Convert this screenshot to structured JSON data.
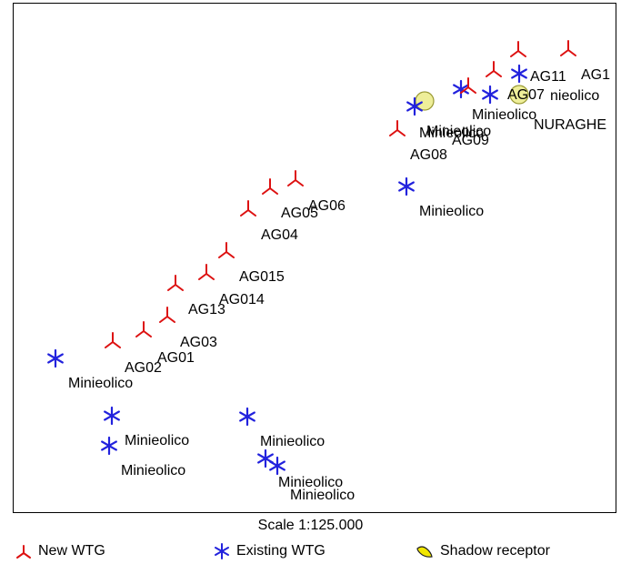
{
  "map": {
    "new_wtg": [
      {
        "label": "AG1"
      },
      {
        "label": "AG11"
      },
      {
        "label": "AG07"
      },
      {
        "label": "AG09"
      },
      {
        "label": "AG08"
      },
      {
        "label": "AG06"
      },
      {
        "label": "AG05"
      },
      {
        "label": "AG04"
      },
      {
        "label": "AG015"
      },
      {
        "label": "AG014"
      },
      {
        "label": "AG13"
      },
      {
        "label": "AG03"
      },
      {
        "label": "AG01"
      },
      {
        "label": "AG02"
      }
    ],
    "existing_wtg": [
      {
        "label": "nieolico"
      },
      {
        "label": "Minieolico"
      },
      {
        "label": "Minieolico"
      },
      {
        "label": "Minieolico"
      },
      {
        "label": "Minieolico"
      },
      {
        "label": "Minieolico"
      },
      {
        "label": "Minieolico"
      },
      {
        "label": "Minieolico"
      },
      {
        "label": "Minieolico"
      },
      {
        "label": "Minieolico"
      },
      {
        "label": "Minieolico"
      }
    ],
    "shadow_receptors": [
      {
        "label": ""
      },
      {
        "label": "NURAGHE"
      }
    ],
    "colors": {
      "new_wtg": "#dd1111",
      "existing_wtg": "#2222dd",
      "shadow_receptor_fill": "#eeee99",
      "shadow_receptor_stroke": "#999933"
    }
  },
  "scale": "Scale 1:125.000",
  "legend": {
    "new_wtg": "New WTG",
    "existing_wtg": "Existing WTG",
    "shadow_receptor": "Shadow receptor"
  }
}
